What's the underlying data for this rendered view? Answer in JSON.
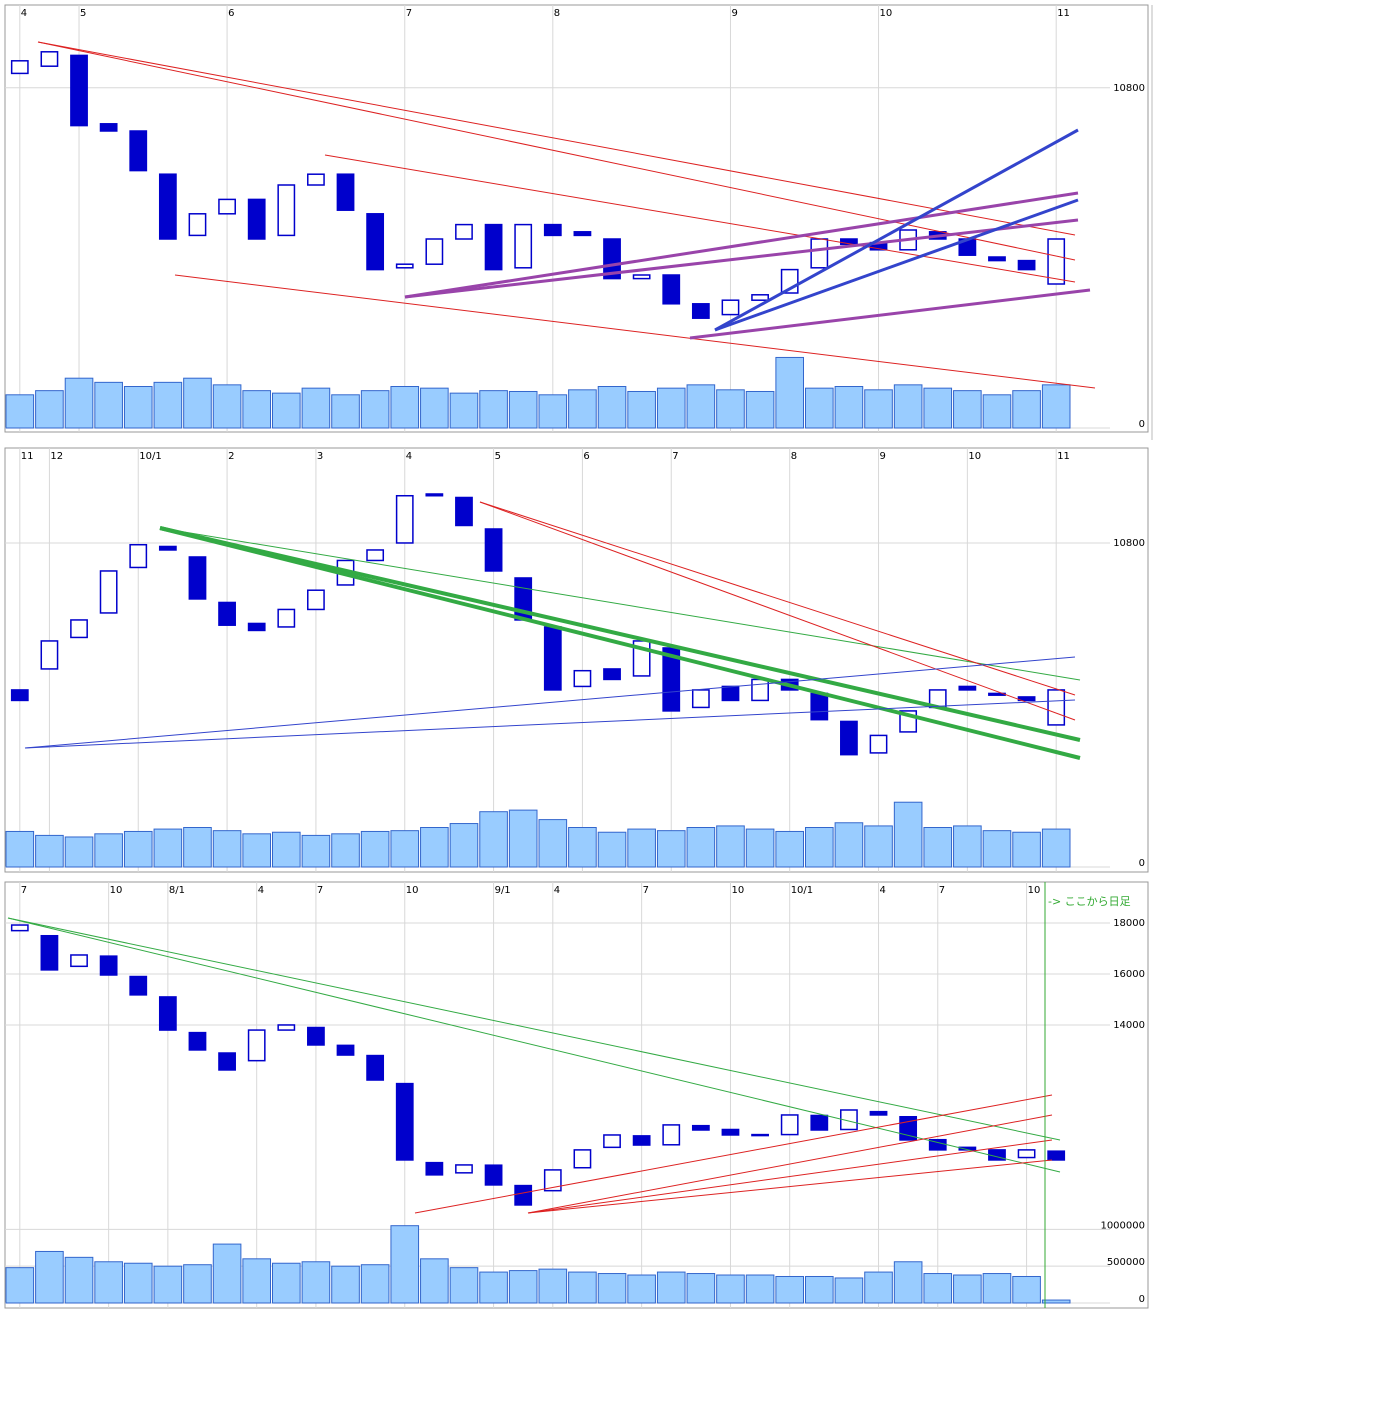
{
  "chart_data": [
    {
      "type": "candlestick",
      "categories": [
        "4",
        null,
        "5",
        null,
        null,
        null,
        null,
        "6",
        null,
        null,
        null,
        null,
        null,
        "7",
        null,
        null,
        null,
        null,
        "8",
        null,
        null,
        null,
        null,
        null,
        "9",
        null,
        null,
        null,
        null,
        "10",
        null,
        null,
        null,
        null,
        null,
        "11"
      ],
      "open": [
        10840,
        10860,
        10890,
        10700,
        10680,
        10560,
        10390,
        10450,
        10490,
        10390,
        10530,
        10560,
        10450,
        10300,
        10310,
        10380,
        10420,
        10300,
        10420,
        10400,
        10380,
        10270,
        10280,
        10200,
        10170,
        10210,
        10230,
        10300,
        10380,
        10370,
        10350,
        10400,
        10380,
        10330,
        10320,
        10255
      ],
      "close": [
        10875,
        10900,
        10695,
        10680,
        10570,
        10380,
        10450,
        10490,
        10380,
        10530,
        10560,
        10460,
        10295,
        10310,
        10380,
        10420,
        10295,
        10420,
        10390,
        10390,
        10270,
        10280,
        10200,
        10160,
        10210,
        10225,
        10295,
        10380,
        10365,
        10350,
        10405,
        10380,
        10335,
        10320,
        10295,
        10380
      ],
      "color": "#0000cc",
      "ylim": [
        10080,
        11030
      ],
      "yticks": [
        10800
      ],
      "volume": {
        "values": [
          40,
          45,
          60,
          55,
          50,
          55,
          60,
          52,
          45,
          42,
          48,
          40,
          45,
          50,
          48,
          42,
          45,
          44,
          40,
          46,
          50,
          44,
          48,
          52,
          46,
          44,
          85,
          48,
          50,
          46,
          52,
          48,
          45,
          40,
          45,
          52
        ],
        "color": "#99ccff",
        "ylim": [
          0,
          100
        ],
        "yticks": [
          0
        ]
      }
    },
    {
      "type": "candlestick",
      "categories": [
        "11",
        "12",
        null,
        null,
        "10/1",
        null,
        null,
        "2",
        null,
        null,
        "3",
        null,
        null,
        "4",
        null,
        null,
        "5",
        null,
        null,
        "6",
        null,
        null,
        "7",
        null,
        null,
        null,
        "8",
        null,
        null,
        "9",
        null,
        null,
        "10",
        null,
        null,
        "11"
      ],
      "open": [
        10380,
        10440,
        10530,
        10600,
        10730,
        10790,
        10760,
        10630,
        10570,
        10560,
        10610,
        10680,
        10750,
        10800,
        10940,
        10930,
        10840,
        10700,
        10560,
        10390,
        10440,
        10420,
        10500,
        10330,
        10390,
        10350,
        10410,
        10370,
        10290,
        10200,
        10260,
        10330,
        10390,
        10370,
        10360,
        10280
      ],
      "close": [
        10350,
        10520,
        10580,
        10720,
        10795,
        10780,
        10640,
        10565,
        10550,
        10610,
        10665,
        10750,
        10780,
        10935,
        10935,
        10850,
        10720,
        10580,
        10380,
        10435,
        10410,
        10520,
        10320,
        10380,
        10350,
        10410,
        10380,
        10295,
        10195,
        10250,
        10320,
        10380,
        10380,
        10365,
        10350,
        10380
      ],
      "color": "#0000cc",
      "ylim": [
        10094,
        11060
      ],
      "yticks": [
        10800
      ],
      "volume": {
        "values": [
          45,
          40,
          38,
          42,
          45,
          48,
          50,
          46,
          42,
          44,
          40,
          42,
          45,
          46,
          50,
          55,
          70,
          72,
          60,
          50,
          44,
          48,
          46,
          50,
          52,
          48,
          45,
          50,
          56,
          52,
          82,
          50,
          52,
          46,
          44,
          48
        ],
        "color": "#99ccff",
        "ylim": [
          0,
          100
        ],
        "yticks": [
          0
        ]
      }
    },
    {
      "type": "candlestick",
      "categories": [
        "7",
        null,
        null,
        "10",
        null,
        "8/1",
        null,
        null,
        "4",
        null,
        "7",
        null,
        null,
        "10",
        null,
        null,
        "9/1",
        null,
        "4",
        null,
        null,
        "7",
        null,
        null,
        "10",
        null,
        "10/1",
        null,
        null,
        "4",
        null,
        "7",
        null,
        null,
        "10",
        null
      ],
      "open": [
        17700,
        17500,
        16300,
        16700,
        15900,
        15100,
        13700,
        12900,
        12600,
        13800,
        13900,
        13200,
        12800,
        11700,
        8600,
        8200,
        8500,
        7700,
        7500,
        8400,
        9200,
        9650,
        9300,
        10050,
        9900,
        9700,
        9700,
        10450,
        9900,
        10600,
        10400,
        9500,
        9200,
        9100,
        8800,
        9050
      ],
      "close": [
        17920,
        16160,
        16745,
        15960,
        15180,
        13800,
        13020,
        12235,
        13800,
        14000,
        13215,
        12820,
        11840,
        8705,
        8120,
        8510,
        7725,
        6940,
        8315,
        9100,
        9685,
        9290,
        10080,
        9880,
        9685,
        9685,
        10470,
        9880,
        10665,
        10470,
        9490,
        9100,
        9100,
        8705,
        9100,
        8705
      ],
      "color": "#0000cc",
      "ylim": [
        6350,
        19490
      ],
      "yticks": [
        14000,
        16000,
        18000
      ],
      "annotation": "-> ここから日足",
      "volume": {
        "values": [
          480000,
          700000,
          620000,
          560000,
          540000,
          500000,
          520000,
          800000,
          600000,
          540000,
          560000,
          500000,
          520000,
          1050000,
          600000,
          480000,
          420000,
          440000,
          460000,
          420000,
          400000,
          380000,
          420000,
          400000,
          380000,
          380000,
          360000,
          360000,
          340000,
          420000,
          560000,
          400000,
          380000,
          400000,
          360000,
          40000
        ],
        "color": "#99ccff",
        "ylim": [
          0,
          1100000
        ],
        "yticks": [
          0,
          500000,
          1000000
        ]
      }
    }
  ]
}
